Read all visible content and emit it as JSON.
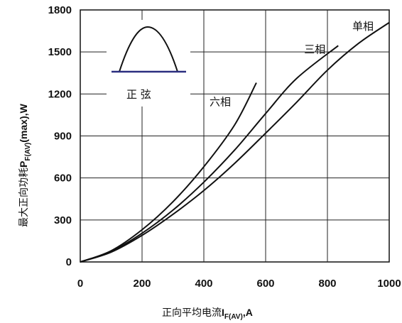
{
  "chart_data": {
    "type": "line",
    "xlabel_prefix": "正向平均电流",
    "xlabel_symbol": "I",
    "xlabel_sub": "F(AV)",
    "xlabel_unit": ",A",
    "ylabel_prefix": "最大正向功耗",
    "ylabel_symbol": "P",
    "ylabel_sub": "F(AV)",
    "ylabel_unit": "(max),W",
    "xlim": [
      0,
      1000
    ],
    "ylim": [
      0,
      1800
    ],
    "xticks": [
      0,
      200,
      400,
      600,
      800,
      1000
    ],
    "yticks": [
      0,
      300,
      600,
      900,
      1200,
      1500,
      1800
    ],
    "inset_label": "正  弦",
    "series": [
      {
        "name": "六相",
        "points": [
          [
            0,
            0
          ],
          [
            100,
            80
          ],
          [
            200,
            230
          ],
          [
            300,
            430
          ],
          [
            400,
            680
          ],
          [
            500,
            980
          ],
          [
            570,
            1280
          ]
        ]
      },
      {
        "name": "三相",
        "points": [
          [
            0,
            0
          ],
          [
            100,
            75
          ],
          [
            200,
            205
          ],
          [
            300,
            370
          ],
          [
            400,
            570
          ],
          [
            500,
            800
          ],
          [
            600,
            1060
          ],
          [
            700,
            1310
          ],
          [
            835,
            1545
          ]
        ]
      },
      {
        "name": "单相",
        "points": [
          [
            0,
            0
          ],
          [
            100,
            70
          ],
          [
            200,
            190
          ],
          [
            300,
            340
          ],
          [
            400,
            510
          ],
          [
            500,
            705
          ],
          [
            600,
            920
          ],
          [
            700,
            1140
          ],
          [
            800,
            1370
          ],
          [
            900,
            1560
          ],
          [
            1000,
            1710
          ]
        ]
      }
    ]
  }
}
